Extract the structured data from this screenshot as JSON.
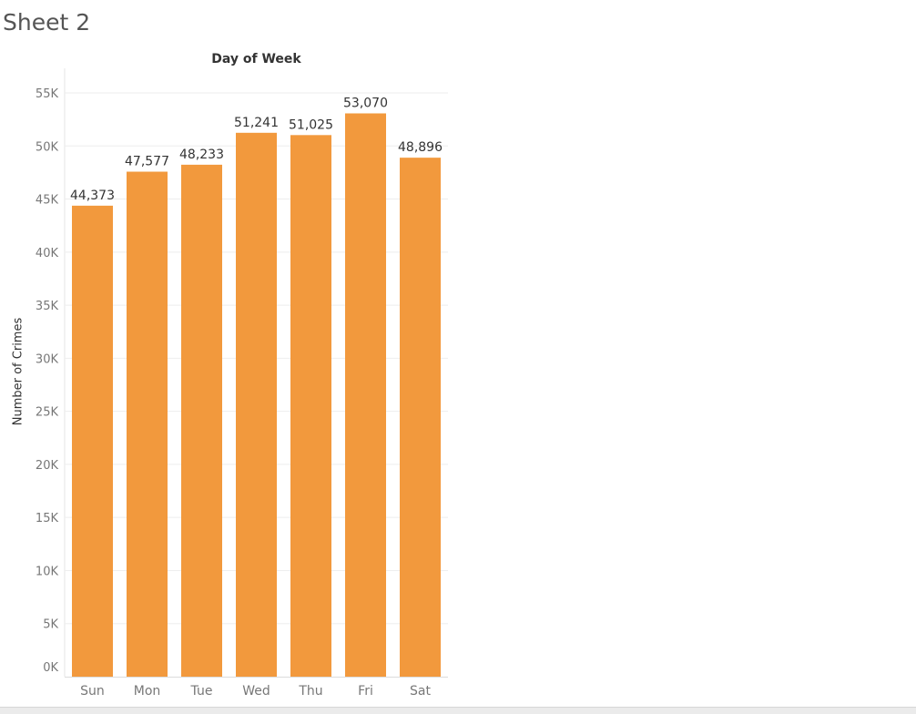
{
  "sheet": {
    "title": "Sheet 2",
    "column_header": "Day of Week"
  },
  "colors": {
    "bar": "#f2993d",
    "gridline": "#eeeeee",
    "axis_text": "#777777",
    "label_text": "#333333"
  },
  "chart_data": {
    "type": "bar",
    "title": "",
    "xlabel": "",
    "ylabel": "Number of Crimes",
    "categories": [
      "Sun",
      "Mon",
      "Tue",
      "Wed",
      "Thu",
      "Fri",
      "Sat"
    ],
    "values": [
      44373,
      47577,
      48233,
      51241,
      51025,
      53070,
      48896
    ],
    "value_labels": [
      "44,373",
      "47,577",
      "48,233",
      "51,241",
      "51,025",
      "53,070",
      "48,896"
    ],
    "yticks": [
      0,
      5000,
      10000,
      15000,
      20000,
      25000,
      30000,
      35000,
      40000,
      45000,
      50000,
      55000
    ],
    "ytick_labels": [
      "0K",
      "5K",
      "10K",
      "15K",
      "20K",
      "25K",
      "30K",
      "35K",
      "40K",
      "45K",
      "50K",
      "55K"
    ],
    "ylim": [
      0,
      55000
    ],
    "grid": true,
    "legend": "none"
  }
}
